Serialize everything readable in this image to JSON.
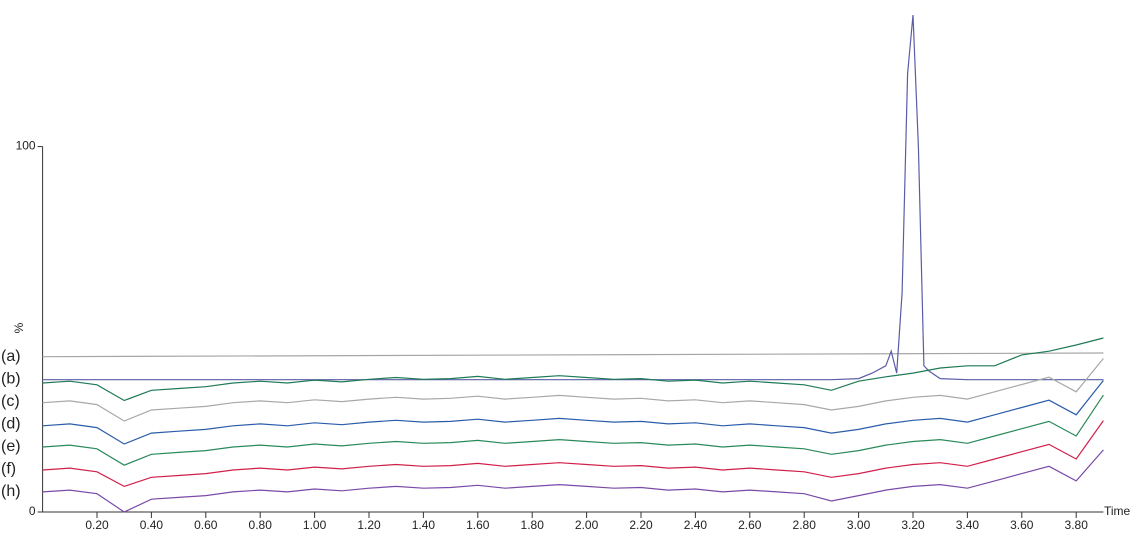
{
  "chart_data": {
    "type": "line",
    "y_label": "%",
    "x_label": "Time",
    "labels": [
      "(a)",
      "(b)",
      "(c)",
      "(d)",
      "(e)",
      "(f)",
      "(h)"
    ],
    "xlim": [
      0,
      3.9
    ],
    "ylim": [
      0,
      136
    ],
    "yticks": [
      0,
      100
    ],
    "xticks": [
      {
        "value": 0.2,
        "label": "0.20"
      },
      {
        "value": 0.4,
        "label": "0.40"
      },
      {
        "value": 0.6,
        "label": "0.60"
      },
      {
        "value": 0.8,
        "label": "0.80"
      },
      {
        "value": 1.0,
        "label": "1.00"
      },
      {
        "value": 1.2,
        "label": "1.20"
      },
      {
        "value": 1.4,
        "label": "1.40"
      },
      {
        "value": 1.6,
        "label": "1.60"
      },
      {
        "value": 1.8,
        "label": "1.80"
      },
      {
        "value": 2.0,
        "label": "2.00"
      },
      {
        "value": 2.2,
        "label": "2.20"
      },
      {
        "value": 2.4,
        "label": "2.40"
      },
      {
        "value": 2.6,
        "label": "2.60"
      },
      {
        "value": 2.8,
        "label": "2.80"
      },
      {
        "value": 3.0,
        "label": "3.00"
      },
      {
        "value": 3.2,
        "label": "3.20"
      },
      {
        "value": 3.4,
        "label": "3.40"
      },
      {
        "value": 3.6,
        "label": "3.60"
      },
      {
        "value": 3.8,
        "label": "3.80"
      }
    ],
    "x": [
      0,
      0.1,
      0.2,
      0.3,
      0.4,
      0.5,
      0.6,
      0.7,
      0.8,
      0.9,
      1.0,
      1.1,
      1.2,
      1.3,
      1.4,
      1.5,
      1.6,
      1.7,
      1.8,
      1.9,
      2.0,
      2.1,
      2.2,
      2.3,
      2.4,
      2.5,
      2.6,
      2.7,
      2.8,
      2.9,
      3.0,
      3.1,
      3.2,
      3.3,
      3.4,
      3.5,
      3.6,
      3.7,
      3.8,
      3.9
    ],
    "series": [
      {
        "color": "#a6a6a6",
        "x": [
          0,
          3.9
        ],
        "values": [
          42.5,
          43.5
        ]
      },
      {
        "color": "#5a5ca8",
        "x": [
          0,
          2.9,
          3.0,
          3.05,
          3.1,
          3.12,
          3.14,
          3.16,
          3.18,
          3.2,
          3.22,
          3.24,
          3.26,
          3.3,
          3.4,
          3.9
        ],
        "values": [
          36.2,
          36.2,
          36.5,
          38,
          40,
          44,
          38,
          60,
          120,
          136,
          100,
          40,
          38.5,
          36.5,
          36.2,
          36.2
        ]
      },
      {
        "color": "#1f7a55",
        "values": [
          35.3,
          35.8,
          34.8,
          30.5,
          33.3,
          33.8,
          34.3,
          35.3,
          35.8,
          35.3,
          36.1,
          35.6,
          36.3,
          36.8,
          36.3,
          36.5,
          37.1,
          36.3,
          36.8,
          37.3,
          36.8,
          36.3,
          36.5,
          35.8,
          36.1,
          35.3,
          35.8,
          35.3,
          34.8,
          33.3,
          35.8,
          37,
          38,
          39.4,
          40,
          40,
          43,
          44,
          45.7,
          47.6
        ]
      },
      {
        "color": "#a8a8a8",
        "values": [
          29.9,
          30.4,
          29.4,
          24.9,
          27.9,
          28.4,
          28.9,
          29.9,
          30.4,
          29.9,
          30.7,
          30.2,
          30.9,
          31.4,
          30.9,
          31.1,
          31.7,
          30.9,
          31.4,
          31.9,
          31.4,
          30.9,
          31.1,
          30.4,
          30.7,
          29.9,
          30.4,
          29.9,
          29.4,
          27.9,
          28.9,
          30.4,
          31.4,
          31.9,
          30.9,
          32.9,
          34.9,
          36.9,
          32.9,
          42
        ]
      },
      {
        "color": "#2a5caa",
        "values": [
          23.6,
          24.1,
          23.1,
          18.6,
          21.6,
          22.1,
          22.6,
          23.6,
          24.1,
          23.6,
          24.4,
          23.9,
          24.6,
          25.1,
          24.6,
          24.8,
          25.4,
          24.6,
          25.1,
          25.6,
          25.1,
          24.6,
          24.8,
          24.1,
          24.4,
          23.6,
          24.1,
          23.6,
          23.1,
          21.6,
          22.6,
          24.1,
          25.1,
          25.6,
          24.6,
          26.6,
          28.6,
          30.6,
          26.6,
          36
        ]
      },
      {
        "color": "#2a8a5a",
        "values": [
          17.8,
          18.3,
          17.3,
          12.8,
          15.8,
          16.3,
          16.8,
          17.8,
          18.3,
          17.8,
          18.6,
          18.1,
          18.8,
          19.3,
          18.8,
          19,
          19.6,
          18.8,
          19.3,
          19.8,
          19.3,
          18.8,
          19,
          18.3,
          18.6,
          17.8,
          18.3,
          17.8,
          17.3,
          15.8,
          16.8,
          18.3,
          19.3,
          19.8,
          18.8,
          20.8,
          22.8,
          24.8,
          20.8,
          32
        ]
      },
      {
        "color": "#d0204a",
        "values": [
          11.5,
          12,
          11,
          7,
          9.5,
          10,
          10.5,
          11.5,
          12,
          11.5,
          12.3,
          11.8,
          12.5,
          13,
          12.5,
          12.7,
          13.3,
          12.5,
          13,
          13.5,
          13,
          12.5,
          12.7,
          12,
          12.3,
          11.5,
          12,
          11.5,
          11,
          9.5,
          10.5,
          12,
          13,
          13.5,
          12.5,
          14.5,
          16.5,
          18.5,
          14.5,
          25
        ]
      },
      {
        "color": "#7a4aa8",
        "values": [
          5.5,
          6,
          5,
          0,
          3.5,
          4,
          4.5,
          5.5,
          6,
          5.5,
          6.3,
          5.8,
          6.5,
          7,
          6.5,
          6.7,
          7.3,
          6.5,
          7,
          7.5,
          7,
          6.5,
          6.7,
          6,
          6.3,
          5.5,
          6,
          5.5,
          5,
          3,
          4.5,
          6,
          7,
          7.5,
          6.5,
          8.5,
          10.5,
          12.5,
          8.5,
          17
        ]
      }
    ]
  }
}
